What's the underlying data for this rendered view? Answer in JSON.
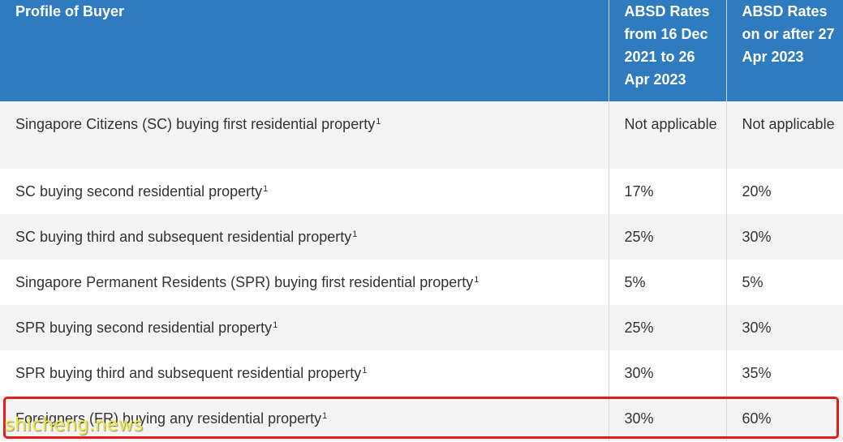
{
  "table": {
    "headers": [
      "Profile of Buyer",
      "ABSD Rates from 16 Dec 2021 to 26 Apr 2023",
      "ABSD Rates on or after 27 Apr 2023"
    ],
    "rows": [
      {
        "profile": "Singapore Citizens (SC) buying first residential property",
        "note": "1",
        "rate_2021": "Not applicable",
        "rate_2023": "Not applicable"
      },
      {
        "profile": "SC buying second residential property",
        "note": "1",
        "rate_2021": "17%",
        "rate_2023": "20%"
      },
      {
        "profile": "SC buying third and subsequent residential property",
        "note": "1",
        "rate_2021": "25%",
        "rate_2023": "30%"
      },
      {
        "profile": "Singapore Permanent Residents (SPR) buying first residential property",
        "note": "1",
        "rate_2021": "5%",
        "rate_2023": "5%"
      },
      {
        "profile": "SPR buying second residential property",
        "note": "1",
        "rate_2021": "25%",
        "rate_2023": "30%"
      },
      {
        "profile": "SPR buying third and subsequent residential property",
        "note": "1",
        "rate_2021": "30%",
        "rate_2023": "35%"
      },
      {
        "profile": "Foreigners (FR) buying any residential property",
        "note": "1",
        "rate_2021": "30%",
        "rate_2023": "60%"
      }
    ]
  },
  "watermark": "shicheng.news",
  "colors": {
    "header_bg": "#2e7bbf",
    "header_text": "#ffffff",
    "row_alt_bg": "#f3f3f3",
    "highlight_border": "#e21d1d",
    "watermark_text": "#f0e84a"
  }
}
